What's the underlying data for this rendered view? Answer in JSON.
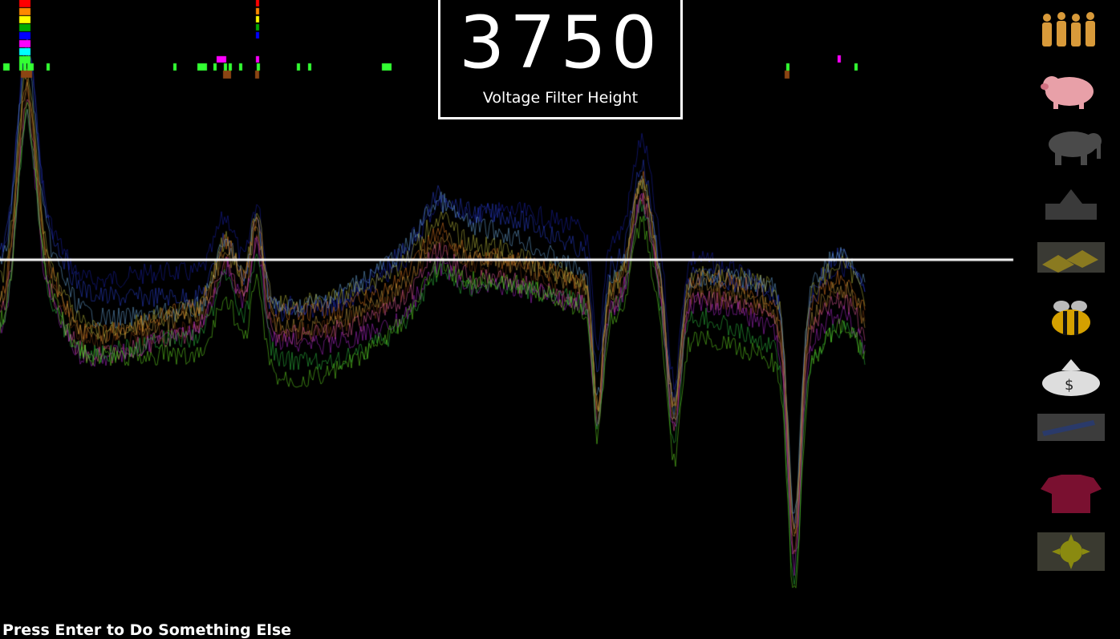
{
  "readout": {
    "value": "3750",
    "label": "Voltage Filter Height"
  },
  "hint": "Press Enter to Do Something Else",
  "icons": [
    "people-icon",
    "pig-icon",
    "elephant-icon",
    "house-icon",
    "gold-bars-icon",
    "bee-icon",
    "money-bag-icon",
    "crayon-icon",
    "tshirt-icon",
    "sun-icon"
  ],
  "series_colors": [
    "#1a20a8",
    "#2a3fd0",
    "#6aa5d8",
    "#b8b83a",
    "#e07a20",
    "#c8a040",
    "#7a3a10",
    "#e05a9a",
    "#b02ad0",
    "#30c040",
    "#66dd22"
  ],
  "marker_colors": [
    "#ff0000",
    "#ff8800",
    "#ffff00",
    "#00aa00",
    "#0000ff",
    "#ff00ff",
    "#00ffff",
    "#33ff33",
    "#8b4513"
  ]
}
